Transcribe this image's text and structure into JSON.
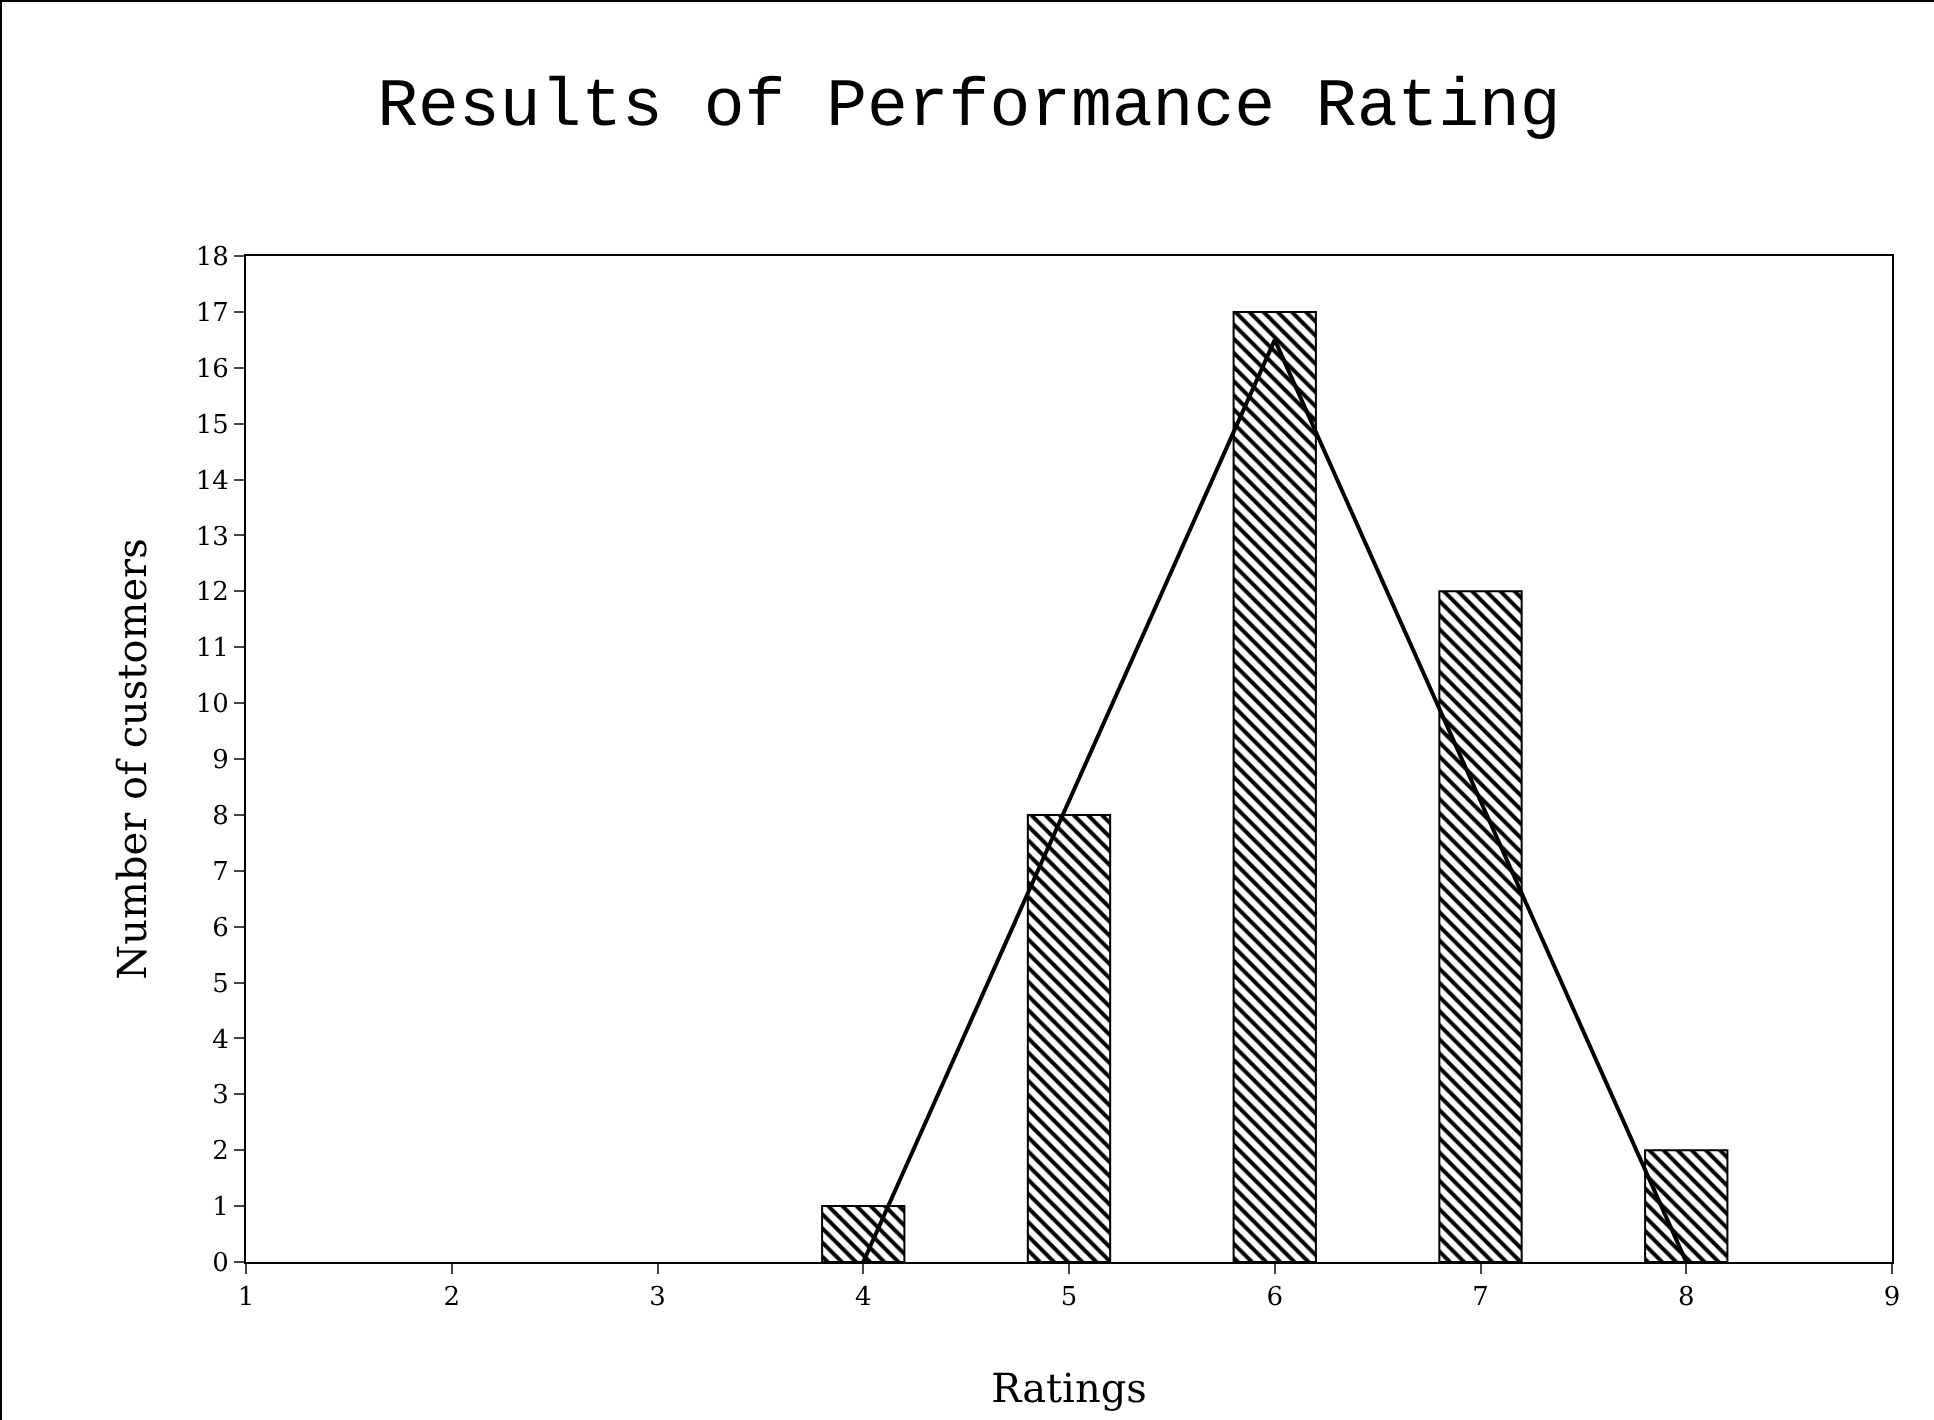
{
  "chart_data": {
    "type": "bar",
    "title": "Results of Performance Rating",
    "xlabel": "Ratings",
    "ylabel": "Number of customers",
    "x": [
      4,
      5,
      6,
      7,
      8
    ],
    "series": [
      {
        "color": "#000000",
        "values": [
          1,
          8,
          17,
          12,
          2
        ]
      },
      {
        "type": "line",
        "color": "#000000",
        "x": [
          4,
          6,
          8
        ],
        "values": [
          0,
          16.5,
          0
        ]
      }
    ],
    "xlim": [
      1,
      9
    ],
    "xticks": [
      1,
      2,
      3,
      4,
      5,
      6,
      7,
      8,
      9
    ],
    "ylim": [
      0,
      18
    ],
    "yticks": [
      0,
      1,
      2,
      3,
      4,
      5,
      6,
      7,
      8,
      9,
      10,
      11,
      12,
      13,
      14,
      15,
      16,
      17,
      18
    ]
  }
}
